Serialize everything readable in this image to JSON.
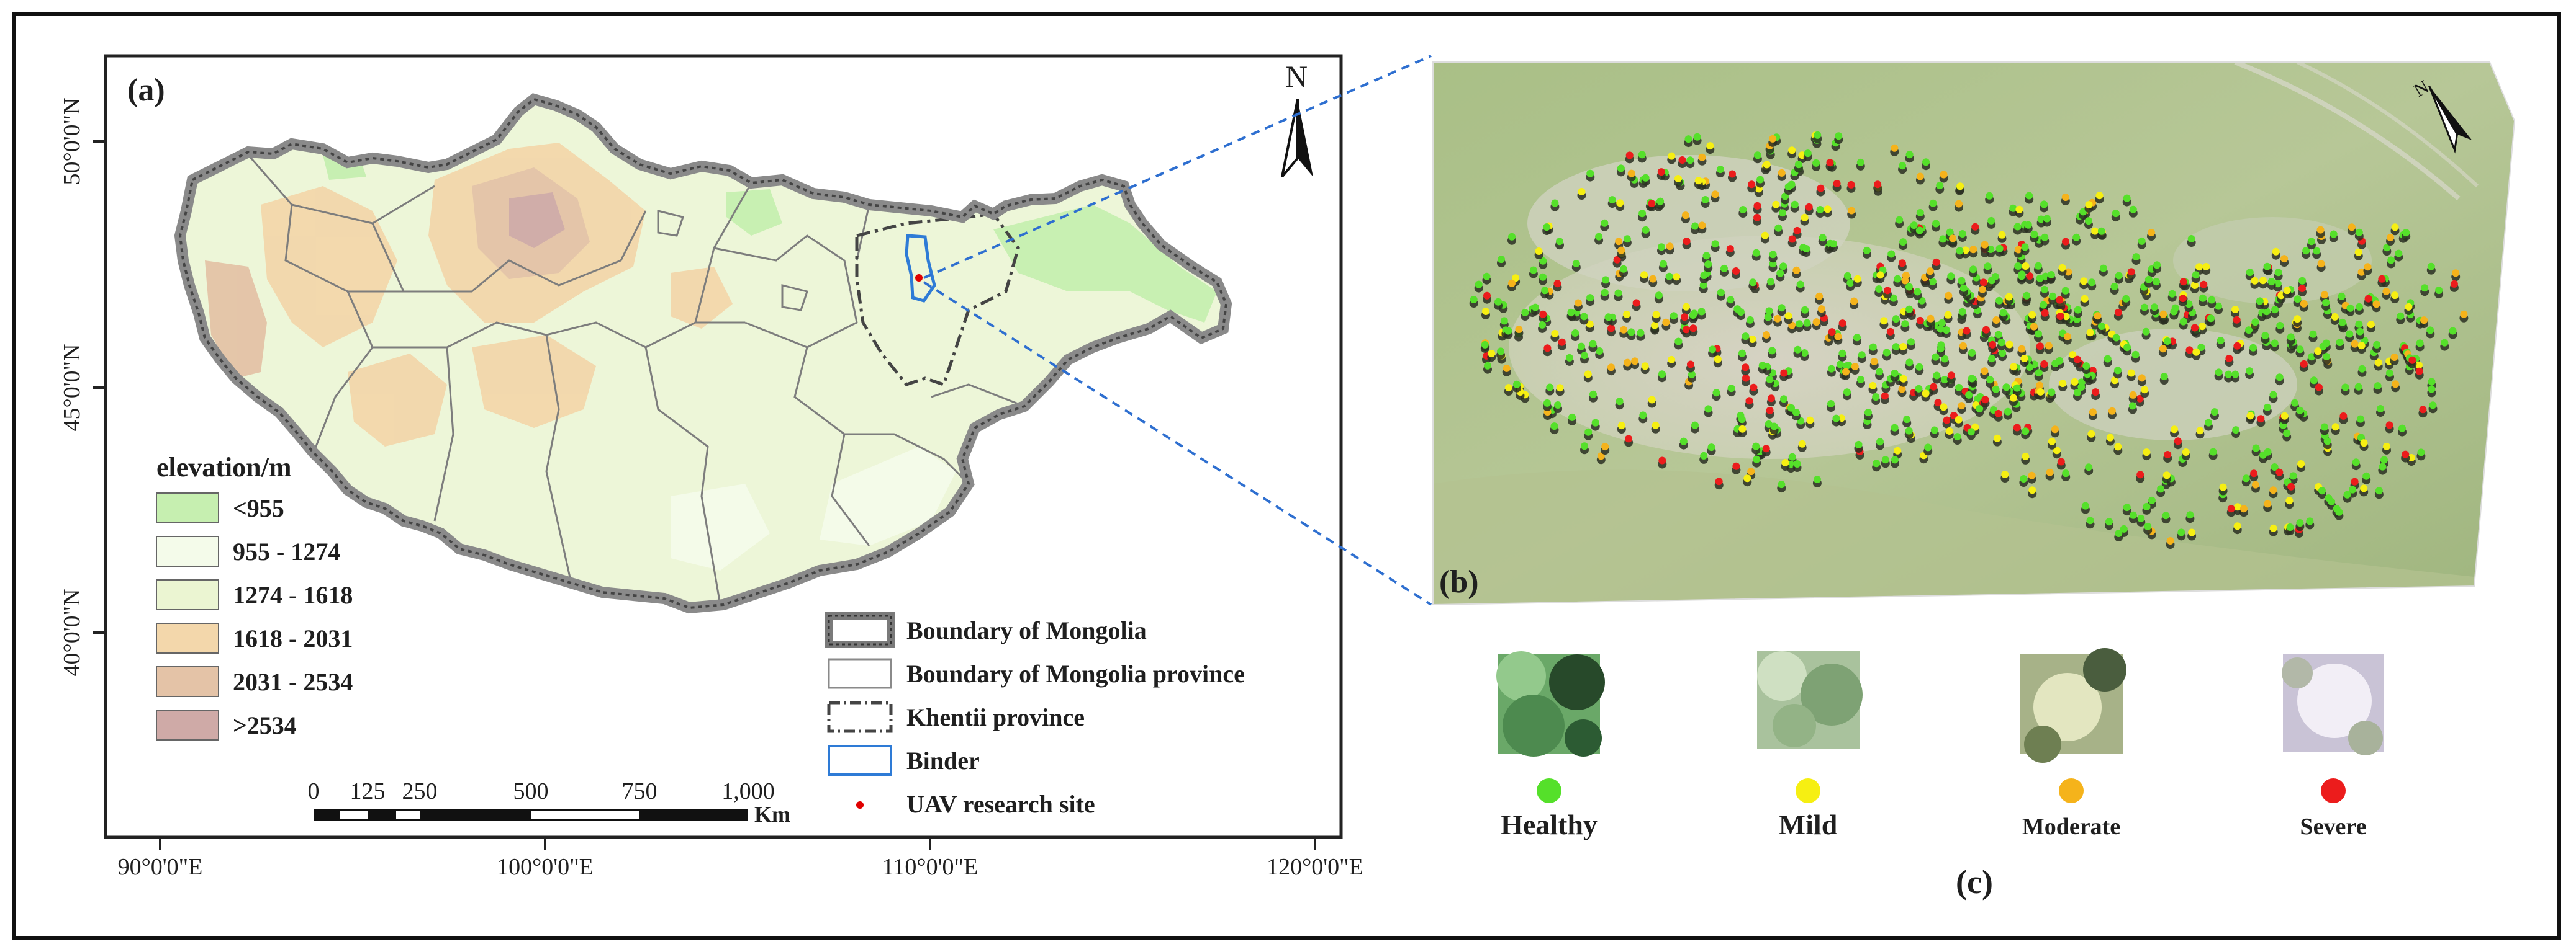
{
  "panels": {
    "a": "(a)",
    "b": "(b)",
    "c": "(c)"
  },
  "map": {
    "north": "N",
    "lat_labels": [
      "50°0'0\"N",
      "45°0'0\"N",
      "40°0'0\"N"
    ],
    "lon_labels": [
      "90°0'0\"E",
      "100°0'0\"E",
      "110°0'0\"E",
      "120°0'0\"E"
    ]
  },
  "elevation_legend": {
    "title": "elevation/m",
    "classes": [
      {
        "label": "<955",
        "color": "#c6efb0"
      },
      {
        "label": "955 - 1274",
        "color": "#f4fbea"
      },
      {
        "label": "1274 - 1618",
        "color": "#ebf5d2"
      },
      {
        "label": "1618 - 2031",
        "color": "#f3d7ab"
      },
      {
        "label": "2031 - 2534",
        "color": "#e4c3a7"
      },
      {
        "label": ">2534",
        "color": "#cfaaa7"
      }
    ]
  },
  "scale_bar": {
    "ticks": [
      "0",
      "125",
      "250",
      "500",
      "750",
      "1,000"
    ],
    "unit": "Km"
  },
  "boundary_legend": {
    "items": [
      {
        "label": "Boundary of Mongolia",
        "symbol": "thick-gray-outline"
      },
      {
        "label": "Boundary of Mongolia province",
        "symbol": "thin-gray-outline"
      },
      {
        "label": "Khentii province",
        "symbol": "dash-dot-outline"
      },
      {
        "label": "Binder",
        "symbol": "blue-outline",
        "color": "#2e7bd6"
      },
      {
        "label": "UAV research site",
        "symbol": "red-dot",
        "color": "#e00000"
      }
    ]
  },
  "severity_classes": [
    {
      "label": "Healthy",
      "color": "#55e02a"
    },
    {
      "label": "Mild",
      "color": "#f6ef12"
    },
    {
      "label": "Moderate",
      "color": "#f5b31b"
    },
    {
      "label": "Severe",
      "color": "#ec1c1c"
    }
  ]
}
